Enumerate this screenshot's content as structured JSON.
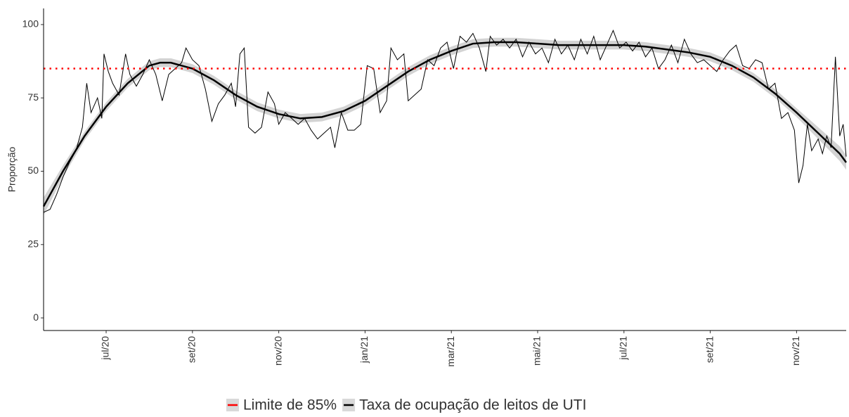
{
  "chart_data": {
    "type": "line",
    "y_label": "Proporção",
    "xlim": [
      5.55,
      24.15
    ],
    "ylim": [
      -4.3,
      105.5
    ],
    "yticks": [
      0,
      25,
      50,
      75,
      100
    ],
    "xticks": [
      {
        "value": 7,
        "label": "jul/20"
      },
      {
        "value": 9,
        "label": "set/20"
      },
      {
        "value": 11,
        "label": "nov/20"
      },
      {
        "value": 13,
        "label": "jan/21"
      },
      {
        "value": 15,
        "label": "mar/21"
      },
      {
        "value": 17,
        "label": "mai/21"
      },
      {
        "value": 19,
        "label": "jul/21"
      },
      {
        "value": 21,
        "label": "set/21"
      },
      {
        "value": 23,
        "label": "nov/21"
      }
    ],
    "series": [
      {
        "name": "Limite de 85%",
        "color": "#ff0000",
        "y": 85
      },
      {
        "name": "Taxa de ocupação de leitos de UTI",
        "color": "#000000",
        "x": [
          5.55,
          5.7,
          5.85,
          6.0,
          6.15,
          6.3,
          6.45,
          6.55,
          6.65,
          6.8,
          6.9,
          6.95,
          7.05,
          7.15,
          7.3,
          7.45,
          7.55,
          7.7,
          7.85,
          8.0,
          8.15,
          8.3,
          8.45,
          8.6,
          8.75,
          8.85,
          9.0,
          9.15,
          9.3,
          9.45,
          9.6,
          9.75,
          9.9,
          10.0,
          10.1,
          10.2,
          10.3,
          10.45,
          10.6,
          10.75,
          10.9,
          11.0,
          11.15,
          11.3,
          11.45,
          11.6,
          11.75,
          11.9,
          12.05,
          12.2,
          12.3,
          12.45,
          12.6,
          12.75,
          12.9,
          13.05,
          13.2,
          13.35,
          13.5,
          13.6,
          13.75,
          13.9,
          14.0,
          14.15,
          14.3,
          14.45,
          14.6,
          14.75,
          14.9,
          15.05,
          15.2,
          15.35,
          15.5,
          15.65,
          15.8,
          15.9,
          16.05,
          16.2,
          16.35,
          16.5,
          16.65,
          16.8,
          16.95,
          17.1,
          17.25,
          17.4,
          17.55,
          17.7,
          17.85,
          18.0,
          18.15,
          18.3,
          18.45,
          18.6,
          18.75,
          18.9,
          19.05,
          19.2,
          19.35,
          19.5,
          19.65,
          19.8,
          19.95,
          20.1,
          20.25,
          20.4,
          20.55,
          20.7,
          20.85,
          21.0,
          21.15,
          21.3,
          21.45,
          21.6,
          21.75,
          21.9,
          22.05,
          22.2,
          22.35,
          22.5,
          22.65,
          22.8,
          22.95,
          23.05,
          23.15,
          23.25,
          23.35,
          23.5,
          23.6,
          23.7,
          23.8,
          23.9,
          24.0,
          24.08,
          24.15
        ],
        "values": [
          36,
          37,
          42,
          48,
          53,
          57,
          65,
          80,
          70,
          75,
          68,
          90,
          84,
          80,
          76,
          90,
          83,
          79,
          83,
          88,
          83,
          74,
          83,
          85,
          87,
          92,
          88,
          86,
          78,
          67,
          73,
          76,
          80,
          72,
          90,
          92,
          65,
          63,
          65,
          77,
          73,
          66,
          70,
          68,
          66,
          68,
          64,
          61,
          63,
          65,
          58,
          70,
          64,
          64,
          66,
          86,
          85,
          70,
          74,
          92,
          88,
          90,
          74,
          76,
          78,
          88,
          86,
          92,
          94,
          85,
          96,
          94,
          97,
          92,
          84,
          96,
          93,
          95,
          92,
          95,
          89,
          94,
          90,
          92,
          87,
          95,
          90,
          93,
          88,
          95,
          90,
          96,
          88,
          93,
          98,
          92,
          94,
          91,
          94,
          89,
          92,
          85,
          88,
          93,
          87,
          95,
          90,
          87,
          88,
          86,
          84,
          88,
          91,
          93,
          86,
          85,
          88,
          87,
          78,
          80,
          68,
          70,
          64,
          46,
          52,
          66,
          57,
          61,
          56,
          62,
          58,
          89,
          62,
          66,
          55
        ]
      }
    ],
    "smooth": {
      "color": "#000000",
      "band_color": "#d3d3d3",
      "x": [
        5.55,
        6,
        6.5,
        7,
        7.5,
        8,
        8.25,
        8.5,
        9,
        9.5,
        10,
        10.5,
        11,
        11.5,
        12,
        12.5,
        13,
        13.5,
        14,
        14.5,
        15,
        15.5,
        16,
        16.5,
        17,
        17.5,
        18,
        18.5,
        19,
        19.5,
        20,
        20.5,
        21,
        21.5,
        22,
        22.5,
        23,
        23.5,
        24,
        24.15
      ],
      "values": [
        38,
        50,
        62,
        72,
        80,
        86,
        87,
        87,
        85,
        81,
        76,
        72,
        69.5,
        68,
        68.5,
        70.5,
        74,
        79,
        84,
        88,
        91,
        93.5,
        94,
        94,
        93.5,
        93,
        93,
        93,
        93,
        92.5,
        91.5,
        90.5,
        89,
        86,
        82,
        76.5,
        70,
        63,
        56,
        53
      ],
      "lower": [
        35,
        48,
        60.5,
        70.5,
        78.5,
        84.5,
        85.5,
        85.5,
        83.5,
        79.5,
        74.5,
        70.5,
        68,
        66.5,
        67,
        69,
        72.5,
        77.5,
        82.5,
        86.5,
        89.5,
        92,
        92.5,
        92.5,
        92,
        91.5,
        91.5,
        91.5,
        91.5,
        91,
        90,
        89,
        87.5,
        84.5,
        80.5,
        75,
        68.5,
        61,
        53.5,
        50.5
      ],
      "upper": [
        41,
        52,
        63.5,
        73.5,
        81.5,
        87.5,
        88.5,
        88.5,
        86.5,
        82.5,
        77.5,
        73.5,
        71,
        69.5,
        70,
        72,
        75.5,
        80.5,
        85.5,
        89.5,
        92.5,
        95,
        95.5,
        95.5,
        95,
        94.5,
        94.5,
        94.5,
        94.5,
        94,
        93,
        92,
        90.5,
        87.5,
        83.5,
        78,
        71.5,
        65,
        58.5,
        55.5
      ]
    }
  }
}
